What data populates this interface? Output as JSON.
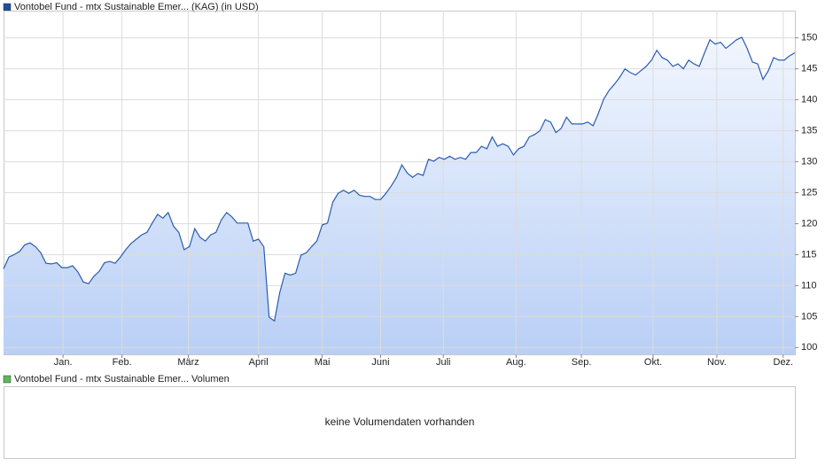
{
  "chart_data": [
    {
      "type": "area",
      "legend": "Vontobel Fund - mtx Sustainable Emer... (KAG) (in USD)",
      "color": "#2a5db0",
      "legend_color": "#1f4e9c",
      "values": [
        112.7,
        114.6,
        115.0,
        115.5,
        116.6,
        116.9,
        116.3,
        115.3,
        113.6,
        113.5,
        113.7,
        112.9,
        112.9,
        113.2,
        112.2,
        110.6,
        110.3,
        111.5,
        112.3,
        113.7,
        113.9,
        113.6,
        114.6,
        115.8,
        116.8,
        117.5,
        118.2,
        118.6,
        120.1,
        121.5,
        120.9,
        121.8,
        119.6,
        118.6,
        115.8,
        116.3,
        119.2,
        117.8,
        117.2,
        118.2,
        118.6,
        120.6,
        121.8,
        121.1,
        120.1,
        120.1,
        120.1,
        117.2,
        117.5,
        116.3,
        104.9,
        104.3,
        108.9,
        112.0,
        111.7,
        112.0,
        114.9,
        115.3,
        116.3,
        117.2,
        119.8,
        120.1,
        123.5,
        124.9,
        125.4,
        124.9,
        125.4,
        124.6,
        124.4,
        124.4,
        123.9,
        123.9,
        124.9,
        126.1,
        127.5,
        129.5,
        128.2,
        127.5,
        128.1,
        127.8,
        130.4,
        130.1,
        130.7,
        130.4,
        130.9,
        130.4,
        130.7,
        130.4,
        131.5,
        131.5,
        132.5,
        132.1,
        134.0,
        132.5,
        132.9,
        132.5,
        131.1,
        132.1,
        132.5,
        134.0,
        134.4,
        135.0,
        136.8,
        136.4,
        134.7,
        135.4,
        137.2,
        136.1,
        136.1,
        136.1,
        136.4,
        135.8,
        137.8,
        140.1,
        141.5,
        142.5,
        143.6,
        145.0,
        144.4,
        144.0,
        144.7,
        145.4,
        146.4,
        148.0,
        146.8,
        146.4,
        145.4,
        145.8,
        145.0,
        146.4,
        145.8,
        145.4,
        147.6,
        149.7,
        149.0,
        149.3,
        148.3,
        149.0,
        149.7,
        150.1,
        148.3,
        146.1,
        145.8,
        143.3,
        144.7,
        146.8,
        146.4,
        146.4,
        147.1,
        147.6
      ],
      "xlim": [
        0,
        149
      ],
      "ylim": [
        98.9,
        154.4
      ],
      "yticks": [
        100,
        105,
        110,
        115,
        120,
        125,
        130,
        135,
        140,
        145,
        150
      ],
      "xticks": [
        {
          "value": 11.2,
          "label": "Jan."
        },
        {
          "value": 22.3,
          "label": "Feb."
        },
        {
          "value": 34.8,
          "label": "März"
        },
        {
          "value": 48,
          "label": "April"
        },
        {
          "value": 60,
          "label": "Mai"
        },
        {
          "value": 71,
          "label": "Juni"
        },
        {
          "value": 82.8,
          "label": "Juli"
        },
        {
          "value": 96.5,
          "label": "Aug."
        },
        {
          "value": 108.8,
          "label": "Sep."
        },
        {
          "value": 122.3,
          "label": "Okt."
        },
        {
          "value": 134.3,
          "label": "Nov."
        },
        {
          "value": 146.8,
          "label": "Dez."
        }
      ],
      "grid": true
    },
    {
      "type": "volume",
      "legend": "Vontobel Fund - mtx Sustainable Emer... Volumen",
      "legend_color": "#5cb85c",
      "message": "keine Volumendaten vorhanden"
    }
  ]
}
